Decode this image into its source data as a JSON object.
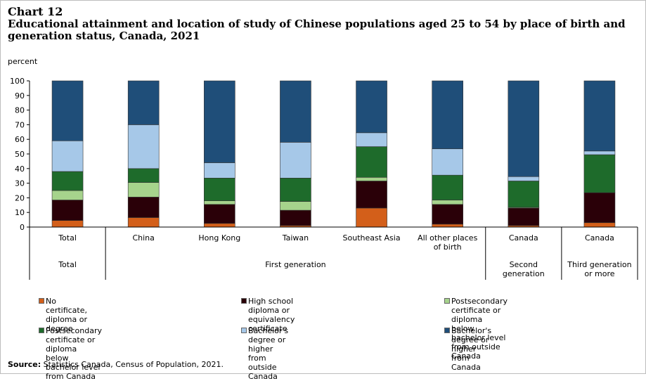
{
  "chart_data": {
    "type": "bar",
    "stacked": true,
    "chart_label": "Chart 12",
    "title": "Educational attainment and location of study of Chinese populations aged 25 to 54 by place of birth and generation status, Canada, 2021",
    "ylabel": "percent",
    "ylim": [
      0,
      100
    ],
    "yticks": [
      0,
      10,
      20,
      30,
      40,
      50,
      60,
      70,
      80,
      90,
      100
    ],
    "categories": [
      "Total",
      "China",
      "Hong Kong",
      "Taiwan",
      "Southeast Asia",
      "All other places of birth",
      "Canada",
      "Canada"
    ],
    "groups": [
      {
        "label": "Total",
        "span": 1
      },
      {
        "label": "First generation",
        "span": 5
      },
      {
        "label": "Second generation",
        "span": 1
      },
      {
        "label": "Third generation or more",
        "span": 1
      }
    ],
    "series": [
      {
        "name": "No certificate, diploma or degree",
        "color": "#d35f1a",
        "values": [
          4.5,
          6.5,
          2.5,
          1.0,
          13.0,
          2.0,
          1.0,
          3.0
        ]
      },
      {
        "name": "High school diploma or equivalency certificate",
        "color": "#2a0008",
        "values": [
          14.0,
          14.0,
          13.0,
          10.5,
          18.5,
          13.5,
          12.0,
          20.5
        ]
      },
      {
        "name": "Postsecondary certificate or diploma below bachelor level from outside Canada",
        "color": "#a6d38c",
        "values": [
          6.5,
          10.0,
          2.5,
          6.0,
          2.5,
          3.0,
          0.5,
          0.0
        ]
      },
      {
        "name": "Postsecondary certificate or diploma below bachelor level from Canada",
        "color": "#1e6b2b",
        "values": [
          13.0,
          9.5,
          15.5,
          16.0,
          21.0,
          17.0,
          18.0,
          26.0
        ]
      },
      {
        "name": "Bachelor's degree or higher from outside Canada",
        "color": "#a6c8e8",
        "values": [
          21.0,
          30.0,
          10.5,
          24.5,
          9.5,
          18.0,
          3.0,
          2.5
        ]
      },
      {
        "name": "Bachelor's degree or higher from Canada",
        "color": "#1f4e79",
        "values": [
          41.0,
          30.0,
          56.0,
          42.0,
          35.5,
          46.5,
          65.5,
          48.0
        ]
      }
    ],
    "legend_position": "bottom",
    "source": "Statistics Canada, Census of Population, 2021.",
    "source_label": "Source:"
  }
}
